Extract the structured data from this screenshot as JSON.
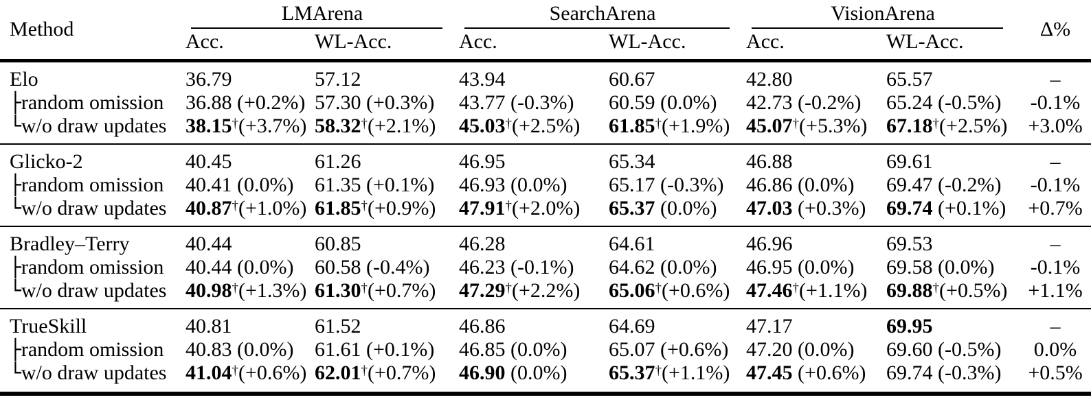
{
  "table": {
    "method_header": "Method",
    "delta_header": "Δ%",
    "dagger_symbol": "†",
    "groups": [
      {
        "label": "LMArena"
      },
      {
        "label": "SearchArena"
      },
      {
        "label": "VisionArena"
      }
    ],
    "subheaders": [
      "Acc.",
      "WL-Acc."
    ],
    "sections": [
      {
        "rows": [
          {
            "label": "Elo",
            "prefix": "",
            "delta": "–",
            "cells": [
              {
                "v": "36.79"
              },
              {
                "v": "57.12"
              },
              {
                "v": "43.94"
              },
              {
                "v": "60.67"
              },
              {
                "v": "42.80"
              },
              {
                "v": "65.57"
              }
            ]
          },
          {
            "label": "random omission",
            "prefix": "├",
            "delta": "-0.1%",
            "cells": [
              {
                "v": "36.88",
                "p": "(+0.2%)"
              },
              {
                "v": "57.30",
                "p": "(+0.3%)"
              },
              {
                "v": "43.77",
                "p": "(-0.3%)"
              },
              {
                "v": "60.59",
                "p": "(0.0%)"
              },
              {
                "v": "42.73",
                "p": "(-0.2%)"
              },
              {
                "v": "65.24",
                "p": "(-0.5%)"
              }
            ]
          },
          {
            "label": "w/o draw updates",
            "prefix": "└",
            "delta": "+3.0%",
            "cells": [
              {
                "v": "38.15",
                "p": "(+3.7%)",
                "b": true,
                "d": true
              },
              {
                "v": "58.32",
                "p": "(+2.1%)",
                "b": true,
                "d": true
              },
              {
                "v": "45.03",
                "p": "(+2.5%)",
                "b": true,
                "d": true
              },
              {
                "v": "61.85",
                "p": "(+1.9%)",
                "b": true,
                "d": true
              },
              {
                "v": "45.07",
                "p": "(+5.3%)",
                "b": true,
                "d": true
              },
              {
                "v": "67.18",
                "p": "(+2.5%)",
                "b": true,
                "d": true
              }
            ]
          }
        ]
      },
      {
        "rows": [
          {
            "label": "Glicko-2",
            "prefix": "",
            "delta": "–",
            "cells": [
              {
                "v": "40.45"
              },
              {
                "v": "61.26"
              },
              {
                "v": "46.95"
              },
              {
                "v": "65.34"
              },
              {
                "v": "46.88"
              },
              {
                "v": "69.61"
              }
            ]
          },
          {
            "label": "random omission",
            "prefix": "├",
            "delta": "-0.1%",
            "cells": [
              {
                "v": "40.41",
                "p": "(0.0%)"
              },
              {
                "v": "61.35",
                "p": "(+0.1%)"
              },
              {
                "v": "46.93",
                "p": "(0.0%)"
              },
              {
                "v": "65.17",
                "p": "(-0.3%)"
              },
              {
                "v": "46.86",
                "p": "(0.0%)"
              },
              {
                "v": "69.47",
                "p": "(-0.2%)"
              }
            ]
          },
          {
            "label": "w/o draw updates",
            "prefix": "└",
            "delta": "+0.7%",
            "cells": [
              {
                "v": "40.87",
                "p": "(+1.0%)",
                "b": true,
                "d": true
              },
              {
                "v": "61.85",
                "p": "(+0.9%)",
                "b": true,
                "d": true
              },
              {
                "v": "47.91",
                "p": "(+2.0%)",
                "b": true,
                "d": true
              },
              {
                "v": "65.37",
                "p": "(0.0%)",
                "b": true
              },
              {
                "v": "47.03",
                "p": "(+0.3%)",
                "b": true
              },
              {
                "v": "69.74",
                "p": "(+0.1%)",
                "b": true
              }
            ]
          }
        ]
      },
      {
        "rows": [
          {
            "label": "Bradley–Terry",
            "prefix": "",
            "delta": "–",
            "cells": [
              {
                "v": "40.44"
              },
              {
                "v": "60.85"
              },
              {
                "v": "46.28"
              },
              {
                "v": "64.61"
              },
              {
                "v": "46.96"
              },
              {
                "v": "69.53"
              }
            ]
          },
          {
            "label": "random omission",
            "prefix": "├",
            "delta": "-0.1%",
            "cells": [
              {
                "v": "40.44",
                "p": "(0.0%)"
              },
              {
                "v": "60.58",
                "p": "(-0.4%)"
              },
              {
                "v": "46.23",
                "p": "(-0.1%)"
              },
              {
                "v": "64.62",
                "p": "(0.0%)"
              },
              {
                "v": "46.95",
                "p": "(0.0%)"
              },
              {
                "v": "69.58",
                "p": "(0.0%)"
              }
            ]
          },
          {
            "label": "w/o draw updates",
            "prefix": "└",
            "delta": "+1.1%",
            "cells": [
              {
                "v": "40.98",
                "p": "(+1.3%)",
                "b": true,
                "d": true
              },
              {
                "v": "61.30",
                "p": "(+0.7%)",
                "b": true,
                "d": true
              },
              {
                "v": "47.29",
                "p": "(+2.2%)",
                "b": true,
                "d": true
              },
              {
                "v": "65.06",
                "p": "(+0.6%)",
                "b": true,
                "d": true
              },
              {
                "v": "47.46",
                "p": "(+1.1%)",
                "b": true,
                "d": true
              },
              {
                "v": "69.88",
                "p": "(+0.5%)",
                "b": true,
                "d": true
              }
            ]
          }
        ]
      },
      {
        "rows": [
          {
            "label": "TrueSkill",
            "prefix": "",
            "delta": "–",
            "cells": [
              {
                "v": "40.81"
              },
              {
                "v": "61.52"
              },
              {
                "v": "46.86"
              },
              {
                "v": "64.69"
              },
              {
                "v": "47.17"
              },
              {
                "v": "69.95",
                "b": true
              }
            ]
          },
          {
            "label": "random omission",
            "prefix": "├",
            "delta": "0.0%",
            "cells": [
              {
                "v": "40.83",
                "p": "(0.0%)"
              },
              {
                "v": "61.61",
                "p": "(+0.1%)"
              },
              {
                "v": "46.85",
                "p": "(0.0%)"
              },
              {
                "v": "65.07",
                "p": "(+0.6%)"
              },
              {
                "v": "47.20",
                "p": "(0.0%)"
              },
              {
                "v": "69.60",
                "p": "(-0.5%)"
              }
            ]
          },
          {
            "label": "w/o draw updates",
            "prefix": "└",
            "delta": "+0.5%",
            "cells": [
              {
                "v": "41.04",
                "p": "(+0.6%)",
                "b": true,
                "d": true
              },
              {
                "v": "62.01",
                "p": "(+0.7%)",
                "b": true,
                "d": true
              },
              {
                "v": "46.90",
                "p": "(0.0%)",
                "b": true
              },
              {
                "v": "65.37",
                "p": "(+1.1%)",
                "b": true,
                "d": true
              },
              {
                "v": "47.45",
                "p": "(+0.6%)",
                "b": true
              },
              {
                "v": "69.74",
                "p": "(-0.3%)"
              }
            ]
          }
        ]
      }
    ]
  }
}
